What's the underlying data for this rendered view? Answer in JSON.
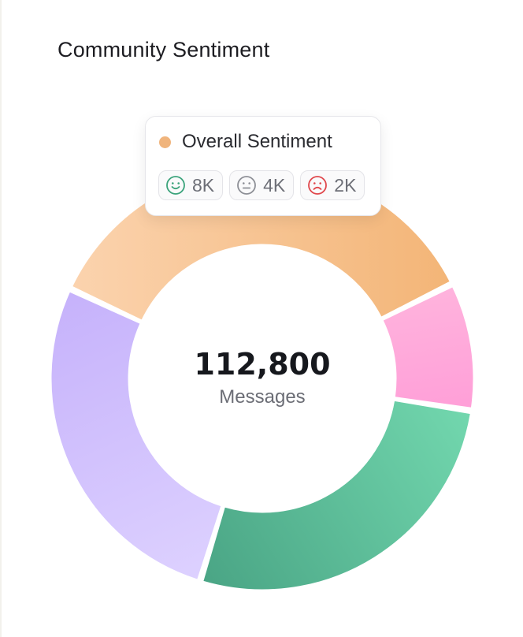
{
  "title": "Community Sentiment",
  "center": {
    "value": "112,800",
    "label": "Messages"
  },
  "tooltip": {
    "series": "Overall Sentiment",
    "color": "#f0b47c",
    "items": [
      {
        "icon": "smile-icon",
        "value": "8K",
        "color": "#3ba37b"
      },
      {
        "icon": "neutral-face-icon",
        "value": "4K",
        "color": "#8d8f96"
      },
      {
        "icon": "frown-icon",
        "value": "2K",
        "color": "#e0474c"
      }
    ]
  },
  "chart_data": {
    "type": "pie",
    "variant": "donut",
    "total": 112800,
    "slices": [
      {
        "share": 0.357,
        "colors": [
          "#fbd3ae",
          "#f3b577"
        ]
      },
      {
        "share": 0.098,
        "colors": [
          "#ffb3dd",
          "#ff9fd8"
        ]
      },
      {
        "share": 0.273,
        "colors": [
          "#72d7ae",
          "#4aa585"
        ]
      },
      {
        "share": 0.272,
        "colors": [
          "#ddd1ff",
          "#c6b2fb"
        ]
      }
    ]
  }
}
